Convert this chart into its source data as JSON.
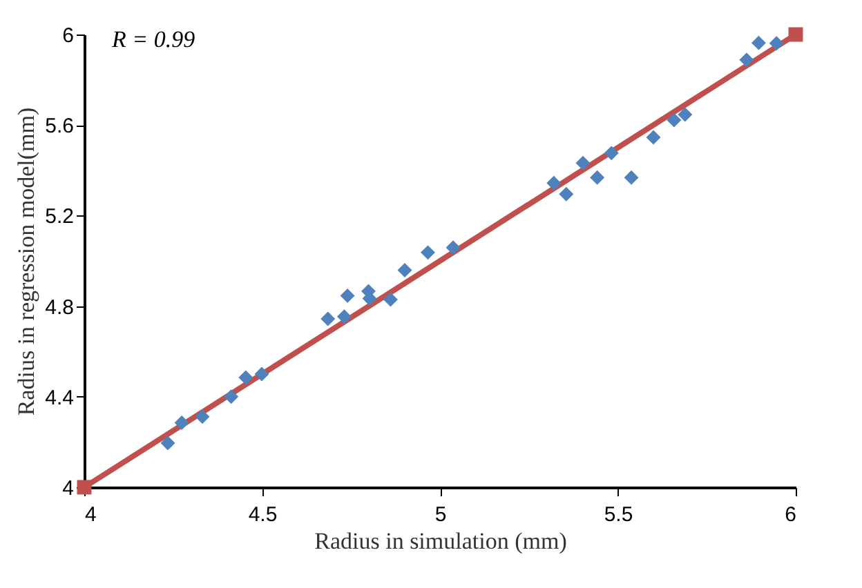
{
  "chart_data": {
    "type": "scatter",
    "xlabel": "Radius in simulation (mm)",
    "ylabel": "Radius in regression model(mm)",
    "annotations": [
      "R = 0.99"
    ],
    "xlim": [
      4,
      6
    ],
    "xticks": [
      4,
      4.5,
      5,
      5.5,
      6
    ],
    "ylim": [
      4,
      6
    ],
    "yticks": [
      4,
      4.4,
      4.8,
      5.2,
      5.6,
      6
    ],
    "grid": false,
    "series": [
      {
        "type": "line",
        "color": "#c0504d",
        "marker": "square",
        "line_style": "solid",
        "x": [
          4,
          6
        ],
        "values": [
          4,
          6
        ]
      },
      {
        "color": "#4f81bd",
        "marker": "diamond",
        "x": [
          4.235,
          4.274,
          4.332,
          4.413,
          4.454,
          4.499,
          4.685,
          4.731,
          4.74,
          4.799,
          4.802,
          4.861,
          4.901,
          4.966,
          5.037,
          5.32,
          5.355,
          5.402,
          5.442,
          5.482,
          5.538,
          5.6,
          5.658,
          5.689,
          5.862,
          5.896,
          5.946
        ],
        "values": [
          4.195,
          4.285,
          4.312,
          4.4,
          4.485,
          4.5,
          4.744,
          4.754,
          4.846,
          4.866,
          4.834,
          4.829,
          4.959,
          5.037,
          5.059,
          5.344,
          5.295,
          5.432,
          5.368,
          5.476,
          5.368,
          5.546,
          5.622,
          5.646,
          5.888,
          5.963,
          5.961
        ]
      }
    ]
  }
}
